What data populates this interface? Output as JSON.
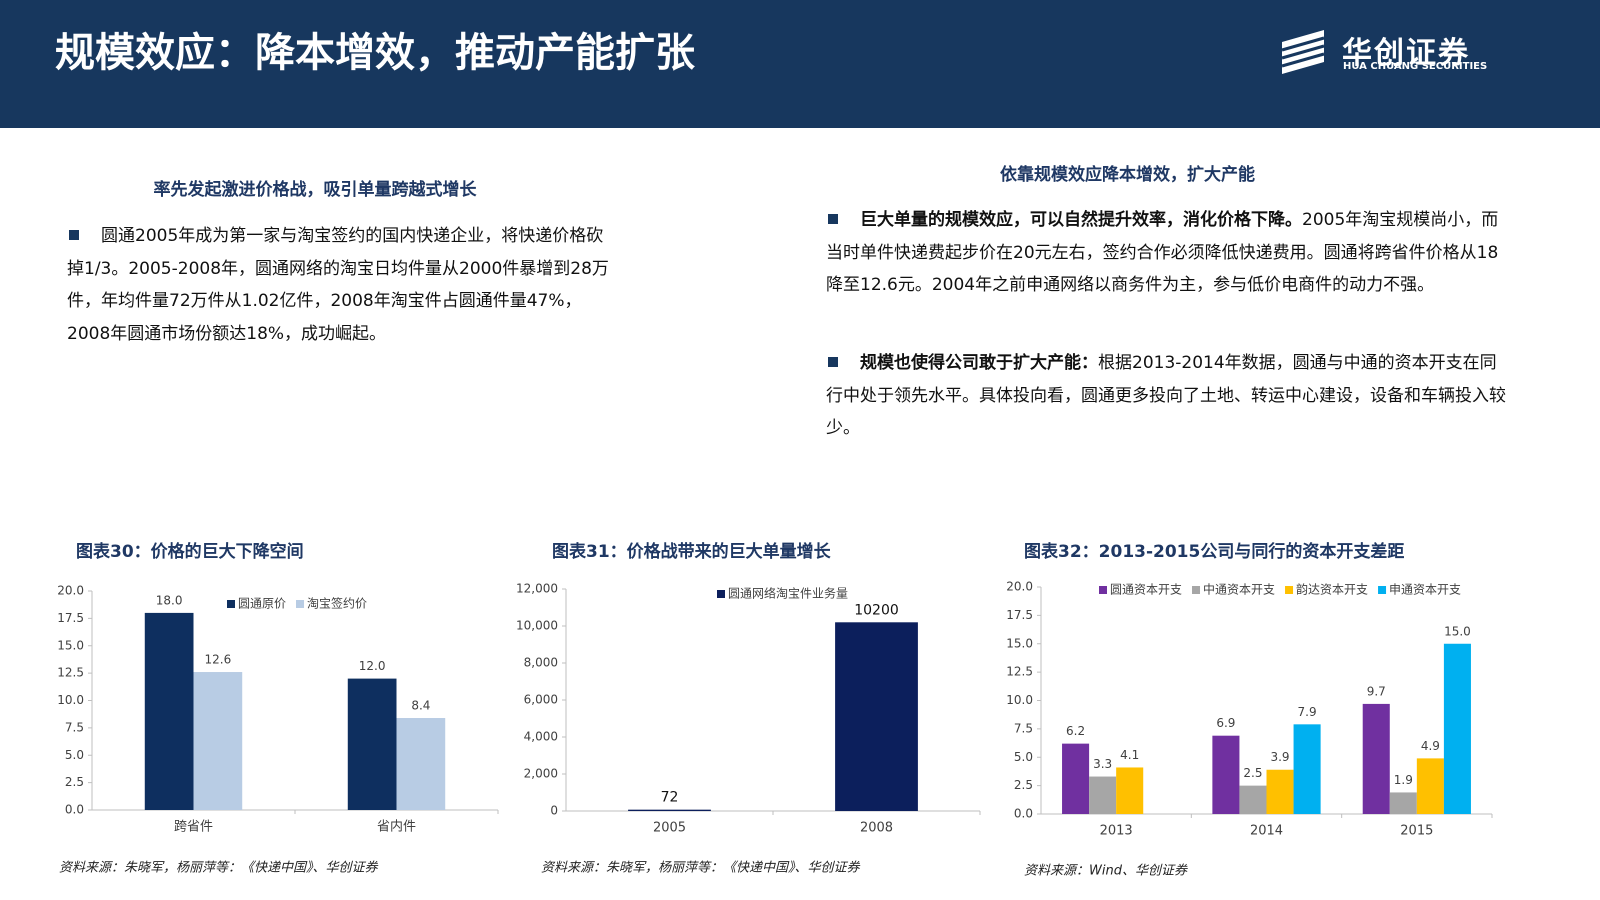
{
  "header": {
    "title": "规模效应：降本增效，推动产能扩张",
    "logo": "华创证券",
    "logo_sub": "HUA CHUANG SECURITIES"
  },
  "left": {
    "heading": "率先发起激进价格战，吸引单量跨越式增长",
    "text": "圆通2005年成为第一家与淘宝签约的国内快递企业，将快递价格砍掉1/3。2005-2008年，圆通网络的淘宝日均件量从2000件暴增到28万件，年均件量72万件从1.02亿件，2008年淘宝件占圆通件量47%，2008年圆通市场份额达18%，成功崛起。"
  },
  "right": {
    "heading": "依靠规模效应降本增效，扩大产能",
    "bullets": [
      {
        "bold": "巨大单量的规模效应，可以自然提升效率，消化价格下降。",
        "text": "2005年淘宝规模尚小，而当时单件快递费起步价在20元左右，签约合作必须降低快递费用。圆通将跨省件价格从18降至12.6元。2004年之前申通网络以商务件为主，参与低价电商件的动力不强。"
      },
      {
        "bold": "规模也使得公司敢于扩大产能：",
        "text": "根据2013-2014年数据，圆通与中通的资本开支在同行中处于领先水平。具体投向看，圆通更多投向了土地、转运中心建设，设备和车辆投入较少。"
      }
    ]
  },
  "chart_data": [
    {
      "type": "bar",
      "title": "图表30：价格的巨大下降空间",
      "categories": [
        "跨省件",
        "省内件"
      ],
      "series": [
        {
          "name": "圆通原价",
          "color": "#0e2f5f",
          "values": [
            18.0,
            12.0
          ],
          "value_labels": [
            "18.0",
            "12.0"
          ]
        },
        {
          "name": "淘宝签约价",
          "color": "#b8cce4",
          "values": [
            12.6,
            8.4
          ]
        }
      ],
      "ylim": [
        0,
        20
      ],
      "yticks": [
        {
          "value": 0,
          "label": "0.0"
        },
        2.5,
        {
          "value": 5,
          "label": "5.0"
        },
        7.5,
        {
          "value": 10,
          "label": "10.0"
        },
        12.5,
        {
          "value": 15,
          "label": "15.0"
        },
        17.5,
        {
          "value": 20,
          "label": "20.0"
        }
      ],
      "source": "资料来源：朱晓军，杨丽萍等：《快递中国》、华创证券"
    },
    {
      "type": "bar",
      "title": "图表31：价格战带来的巨大单量增长",
      "categories": [
        "2005",
        "2008"
      ],
      "series": [
        {
          "name": "圆通网络淘宝件业务量",
          "color": "#0c1f5c",
          "values": [
            72,
            10200
          ]
        }
      ],
      "ylim": [
        0,
        12000
      ],
      "yticks": [
        0,
        {
          "value": 2000,
          "label": "2,000"
        },
        {
          "value": 4000,
          "label": "4,000"
        },
        {
          "value": 6000,
          "label": "6,000"
        },
        {
          "value": 8000,
          "label": "8,000"
        },
        {
          "value": 10000,
          "label": "10,000"
        },
        {
          "value": 12000,
          "label": "12,000"
        }
      ],
      "source": "资料来源：朱晓军，杨丽萍等：《快递中国》、华创证券"
    },
    {
      "type": "bar",
      "title": "图表32：2013-2015公司与同行的资本开支差距",
      "categories": [
        "2013",
        "2014",
        "2015"
      ],
      "series": [
        {
          "name": "圆通资本开支",
          "color": "#7030a0",
          "values": [
            6.2,
            6.9,
            9.7
          ]
        },
        {
          "name": "中通资本开支",
          "color": "#a6a6a6",
          "values": [
            3.3,
            2.5,
            1.9
          ]
        },
        {
          "name": "韵达资本开支",
          "color": "#ffc000",
          "values": [
            4.1,
            3.9,
            4.9
          ]
        },
        {
          "name": "申通资本开支",
          "color": "#00b0f0",
          "values": [
            null,
            7.9,
            15.0
          ],
          "value_labels": [
            null,
            "7.9",
            "15.0"
          ]
        }
      ],
      "ylim": [
        0,
        20
      ],
      "yticks": [
        {
          "value": 0,
          "label": "0.0"
        },
        2.5,
        {
          "value": 5,
          "label": "5.0"
        },
        7.5,
        {
          "value": 10,
          "label": "10.0"
        },
        12.5,
        {
          "value": 15,
          "label": "15.0"
        },
        17.5,
        {
          "value": 20,
          "label": "20.0"
        }
      ],
      "source": "资料来源：Wind、华创证券"
    }
  ]
}
